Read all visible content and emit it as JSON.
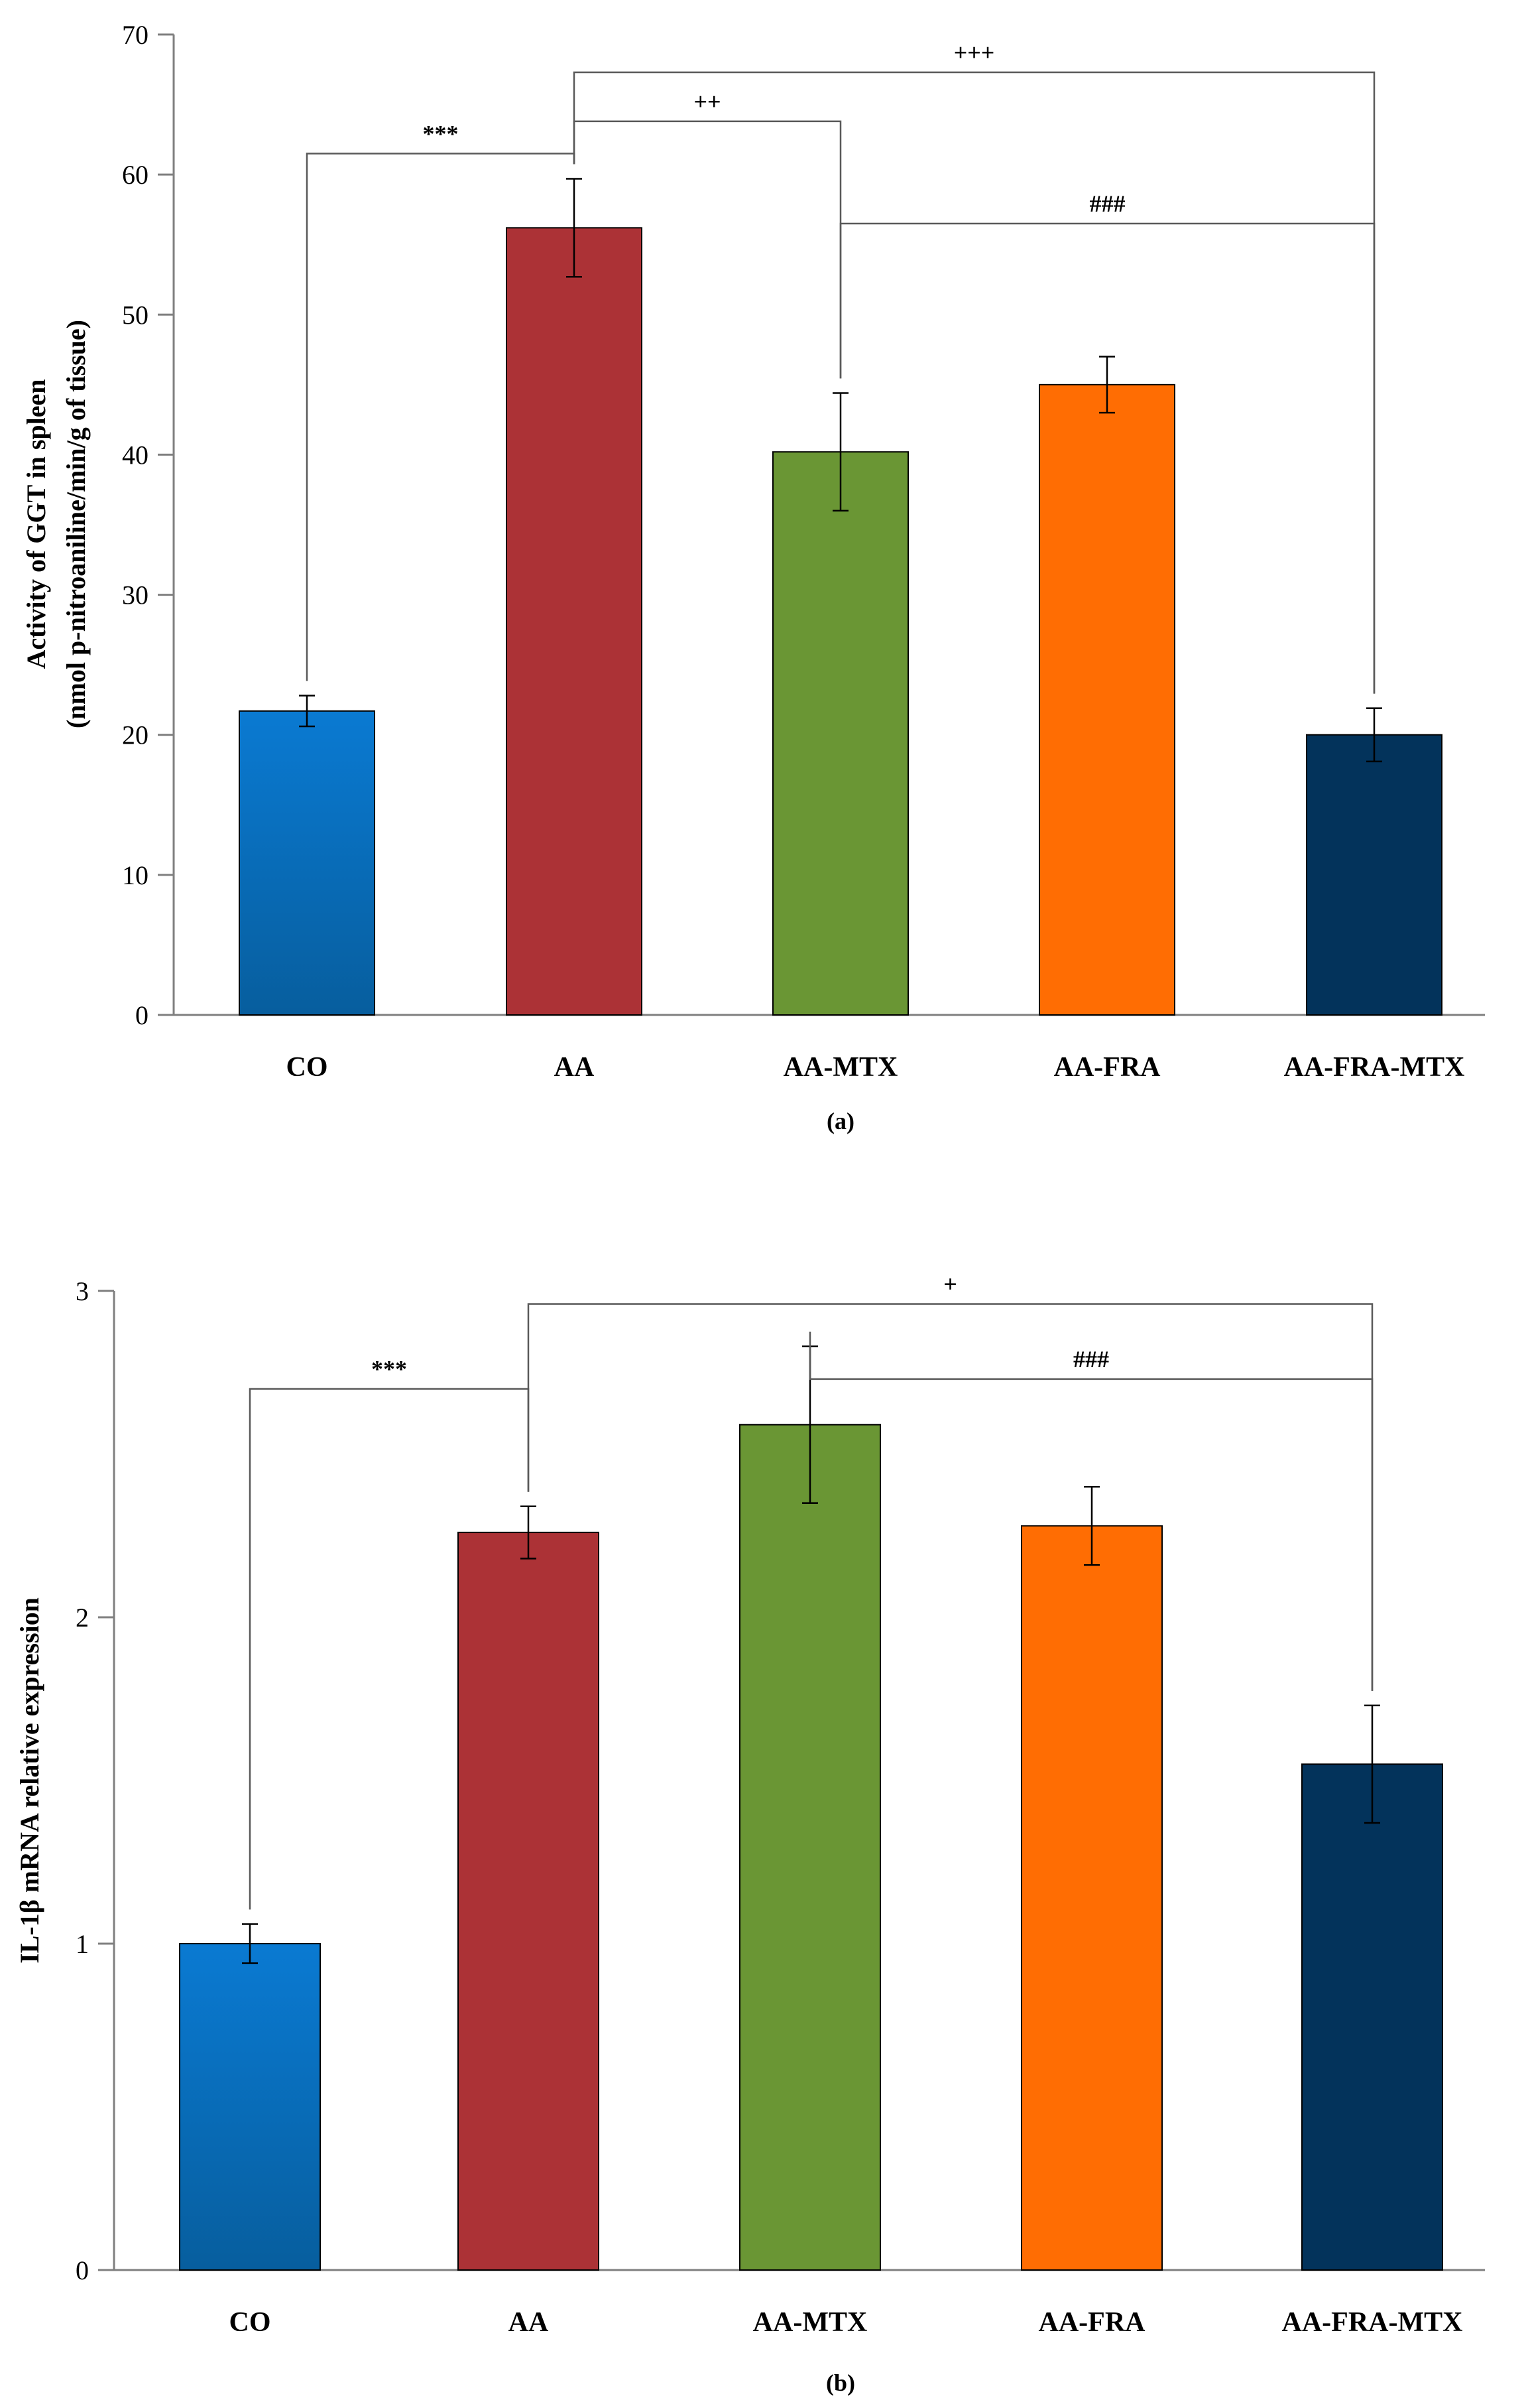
{
  "chart_data": [
    {
      "type": "bar",
      "panel_label": "(a)",
      "ylabel_line1": "Activity of GGT in spleen",
      "ylabel_line2": "(nmol p-nitroaniline/min/g of tissue)",
      "ylim": [
        0,
        70
      ],
      "yticks": [
        "0",
        "10",
        "20",
        "30",
        "40",
        "50",
        "60",
        "70"
      ],
      "categories": [
        "CO",
        "AA",
        "AA-MTX",
        "AA-FRA",
        "AA-FRA-MTX"
      ],
      "values": [
        21.7,
        56.2,
        40.2,
        45.0,
        20.0
      ],
      "errors": [
        1.1,
        3.5,
        4.2,
        2.0,
        1.9
      ],
      "colors": [
        "#0a72c4",
        "#ac3236",
        "#6a9634",
        "#ff6d03",
        "#03335b"
      ],
      "comparisons": [
        {
          "from": 0,
          "to": 1,
          "label": "***",
          "y": 61.5
        },
        {
          "from": 1,
          "to": 2,
          "label": "++",
          "y": 63.8
        },
        {
          "from": 1,
          "to": 4,
          "label": "+++",
          "y": 67.3
        },
        {
          "from": 2,
          "to": 4,
          "label": "###",
          "y": 56.5
        }
      ]
    },
    {
      "type": "bar",
      "panel_label": "(b)",
      "ylabel": "IL-1β mRNA relative expression",
      "ylim": [
        0,
        3
      ],
      "yticks": [
        "0",
        "1",
        "2",
        "3"
      ],
      "categories": [
        "CO",
        "AA",
        "AA-MTX",
        "AA-FRA",
        "AA-FRA-MTX"
      ],
      "values": [
        1.0,
        2.26,
        2.59,
        2.28,
        1.55
      ],
      "errors": [
        0.06,
        0.08,
        0.24,
        0.12,
        0.18
      ],
      "colors": [
        "#0a72c4",
        "#ac3236",
        "#6a9634",
        "#ff6d03",
        "#03335b"
      ],
      "comparisons": [
        {
          "from": 0,
          "to": 1,
          "label": "***",
          "y": 2.7
        },
        {
          "from": 1,
          "to": 4,
          "label": "+",
          "y": 2.96
        },
        {
          "from": 2,
          "to": 4,
          "label": "###",
          "y": 2.73
        }
      ]
    }
  ]
}
